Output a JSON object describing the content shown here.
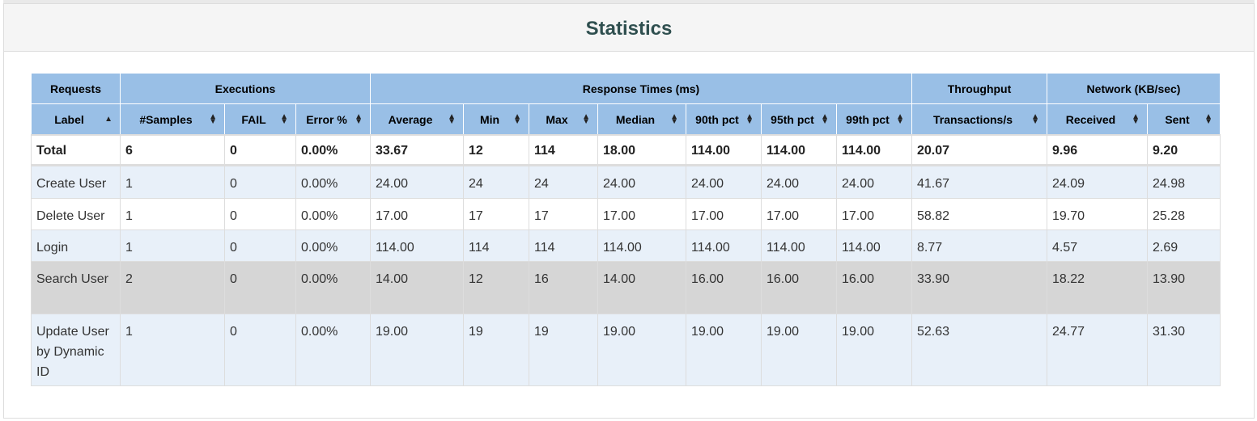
{
  "panel": {
    "title": "Statistics"
  },
  "header": {
    "groups": [
      "Requests",
      "Executions",
      "Response Times (ms)",
      "Throughput",
      "Network (KB/sec)"
    ],
    "columns": [
      "Label",
      "#Samples",
      "FAIL",
      "Error %",
      "Average",
      "Min",
      "Max",
      "Median",
      "90th pct",
      "95th pct",
      "99th pct",
      "Transactions/s",
      "Received",
      "Sent"
    ]
  },
  "total": [
    "Total",
    "6",
    "0",
    "0.00%",
    "33.67",
    "12",
    "114",
    "18.00",
    "114.00",
    "114.00",
    "114.00",
    "20.07",
    "9.96",
    "9.20"
  ],
  "rows": [
    [
      "Create User",
      "1",
      "0",
      "0.00%",
      "24.00",
      "24",
      "24",
      "24.00",
      "24.00",
      "24.00",
      "24.00",
      "41.67",
      "24.09",
      "24.98"
    ],
    [
      "Delete User",
      "1",
      "0",
      "0.00%",
      "17.00",
      "17",
      "17",
      "17.00",
      "17.00",
      "17.00",
      "17.00",
      "58.82",
      "19.70",
      "25.28"
    ],
    [
      "Login",
      "1",
      "0",
      "0.00%",
      "114.00",
      "114",
      "114",
      "114.00",
      "114.00",
      "114.00",
      "114.00",
      "8.77",
      "4.57",
      "2.69"
    ],
    [
      "Search User",
      "2",
      "0",
      "0.00%",
      "14.00",
      "12",
      "16",
      "14.00",
      "16.00",
      "16.00",
      "16.00",
      "33.90",
      "18.22",
      "13.90"
    ],
    [
      "Update User by Dynamic ID",
      "1",
      "0",
      "0.00%",
      "19.00",
      "19",
      "19",
      "19.00",
      "19.00",
      "19.00",
      "19.00",
      "52.63",
      "24.77",
      "31.30"
    ]
  ],
  "colors": {
    "header_bg": "#99bfe6",
    "odd_row_bg": "#e8f0f9",
    "hover_row_bg": "#d6d6d6",
    "title_color": "#2f4f4f"
  }
}
